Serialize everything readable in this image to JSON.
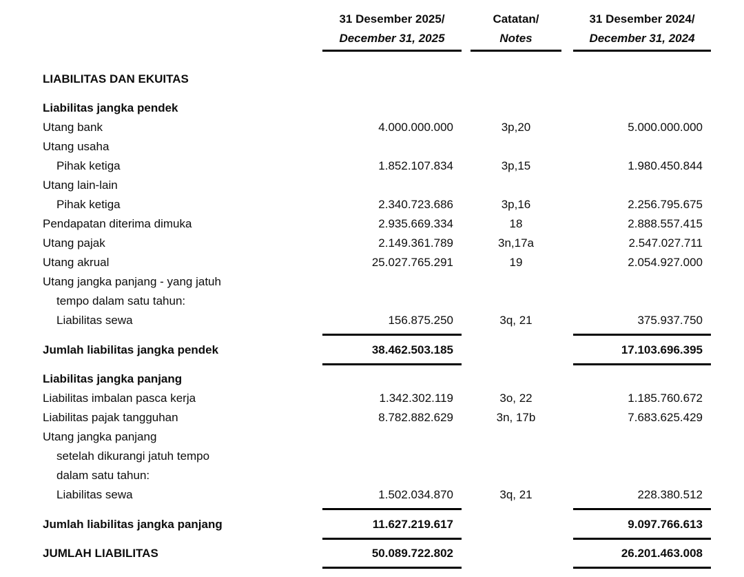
{
  "colors": {
    "background": "#ffffff",
    "text": "#0d0d0d",
    "rule": "#000000"
  },
  "header": {
    "col_2025": {
      "line1": "31 Desember 2025/",
      "line2": "December 31, 2025"
    },
    "col_notes": {
      "line1": "Catatan/",
      "line2": "Notes"
    },
    "col_2024": {
      "line1": "31 Desember 2024/",
      "line2": "December 31, 2024"
    }
  },
  "table": {
    "rows": [
      {
        "label": "LIABILITAS DAN EKUITAS",
        "v2025": "",
        "notes": "",
        "v2024": "",
        "bold": true,
        "indent": false,
        "rule": false,
        "gap": 26
      },
      {
        "label": "Liabilitas jangka pendek",
        "v2025": "",
        "notes": "",
        "v2024": "",
        "bold": true,
        "indent": false,
        "rule": false,
        "gap": 14
      },
      {
        "label": "Utang bank",
        "v2025": "4.000.000.000",
        "notes": "3p,20",
        "v2024": "5.000.000.000",
        "bold": false,
        "indent": false,
        "rule": false,
        "gap": 0
      },
      {
        "label": "Utang usaha",
        "v2025": "",
        "notes": "",
        "v2024": "",
        "bold": false,
        "indent": false,
        "rule": false,
        "gap": 0
      },
      {
        "label": "Pihak ketiga",
        "v2025": "1.852.107.834",
        "notes": "3p,15",
        "v2024": "1.980.450.844",
        "bold": false,
        "indent": true,
        "rule": false,
        "gap": 0
      },
      {
        "label": "Utang lain-lain",
        "v2025": "",
        "notes": "",
        "v2024": "",
        "bold": false,
        "indent": false,
        "rule": false,
        "gap": 0
      },
      {
        "label": "Pihak ketiga",
        "v2025": "2.340.723.686",
        "notes": "3p,16",
        "v2024": "2.256.795.675",
        "bold": false,
        "indent": true,
        "rule": false,
        "gap": 0
      },
      {
        "label": "Pendapatan diterima dimuka",
        "v2025": "2.935.669.334",
        "notes": "18",
        "v2024": "2.888.557.415",
        "bold": false,
        "indent": false,
        "rule": false,
        "gap": 0
      },
      {
        "label": "Utang pajak",
        "v2025": "2.149.361.789",
        "notes": "3n,17a",
        "v2024": "2.547.027.711",
        "bold": false,
        "indent": false,
        "rule": false,
        "gap": 0
      },
      {
        "label": "Utang akrual",
        "v2025": "25.027.765.291",
        "notes": "19",
        "v2024": "2.054.927.000",
        "bold": false,
        "indent": false,
        "rule": false,
        "gap": 0
      },
      {
        "label": "Utang jangka panjang - yang jatuh",
        "v2025": "",
        "notes": "",
        "v2024": "",
        "bold": false,
        "indent": false,
        "rule": false,
        "gap": 0
      },
      {
        "label": "tempo dalam satu tahun:",
        "v2025": "",
        "notes": "",
        "v2024": "",
        "bold": false,
        "indent": true,
        "rule": false,
        "gap": 0
      },
      {
        "label": "Liabilitas sewa",
        "v2025": "156.875.250",
        "notes": "3q, 21",
        "v2024": "375.937.750",
        "bold": false,
        "indent": true,
        "rule": true,
        "gap": 0
      },
      {
        "label": "Jumlah liabilitas jangka pendek",
        "v2025": "38.462.503.185",
        "notes": "",
        "v2024": "17.103.696.395",
        "bold": true,
        "indent": false,
        "rule": true,
        "gap": 7
      },
      {
        "label": "Liabilitas jangka panjang",
        "v2025": "",
        "notes": "",
        "v2024": "",
        "bold": true,
        "indent": false,
        "rule": false,
        "gap": 6
      },
      {
        "label": "Liabilitas imbalan pasca kerja",
        "v2025": "1.342.302.119",
        "notes": "3o, 22",
        "v2024": "1.185.760.672",
        "bold": false,
        "indent": false,
        "rule": false,
        "gap": 0
      },
      {
        "label": "Liabilitas pajak tangguhan",
        "v2025": "8.782.882.629",
        "notes": "3n, 17b",
        "v2024": "7.683.625.429",
        "bold": false,
        "indent": false,
        "rule": false,
        "gap": 0
      },
      {
        "label": "Utang jangka panjang",
        "v2025": "",
        "notes": "",
        "v2024": "",
        "bold": false,
        "indent": false,
        "rule": false,
        "gap": 0
      },
      {
        "label": "setelah dikurangi jatuh tempo",
        "v2025": "",
        "notes": "",
        "v2024": "",
        "bold": false,
        "indent": true,
        "rule": false,
        "gap": 0
      },
      {
        "label": "dalam satu tahun:",
        "v2025": "",
        "notes": "",
        "v2024": "",
        "bold": false,
        "indent": true,
        "rule": false,
        "gap": 0
      },
      {
        "label": "Liabilitas sewa",
        "v2025": "1.502.034.870",
        "notes": "3q, 21",
        "v2024": "228.380.512",
        "bold": false,
        "indent": true,
        "rule": true,
        "gap": 0
      },
      {
        "label": "Jumlah liabilitas jangka panjang",
        "v2025": "11.627.219.617",
        "notes": "",
        "v2024": "9.097.766.613",
        "bold": true,
        "indent": false,
        "rule": true,
        "gap": 7
      },
      {
        "label": "JUMLAH LIABILITAS",
        "v2025": "50.089.722.802",
        "notes": "",
        "v2024": "26.201.463.008",
        "bold": true,
        "indent": false,
        "rule": true,
        "gap": 6
      }
    ]
  }
}
